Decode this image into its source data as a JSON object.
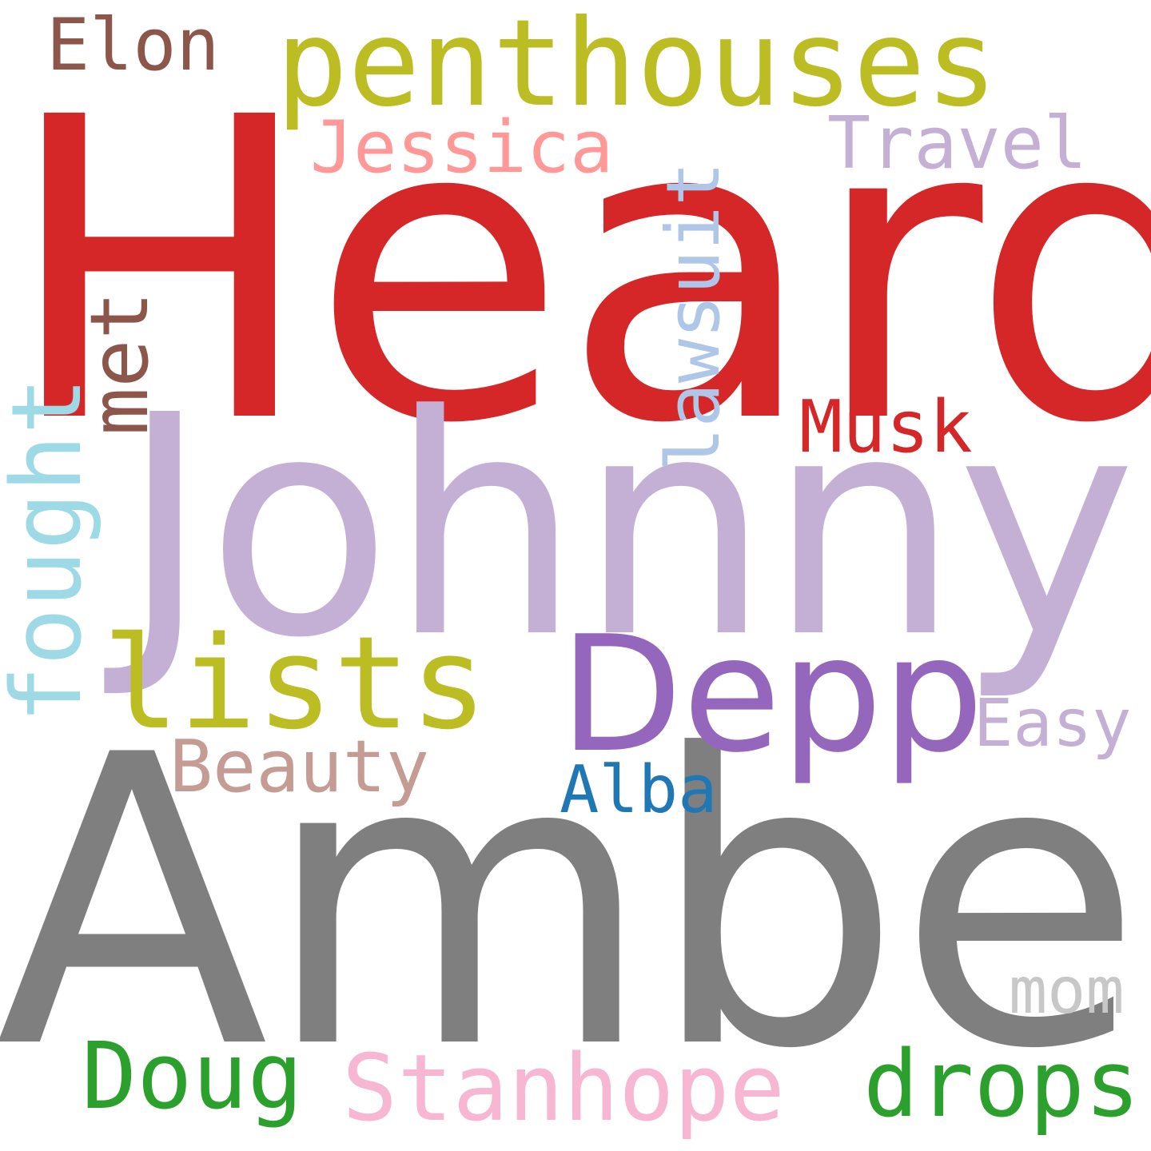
{
  "word_cloud": {
    "words": {
      "heard": {
        "text": "Heard",
        "color": "#d62728"
      },
      "johnny": {
        "text": "Johnny",
        "color": "#c5b0d5"
      },
      "amber": {
        "text": "Amber",
        "color": "#7f7f7f"
      },
      "depp": {
        "text": "Depp",
        "color": "#9467bd"
      },
      "penthouses": {
        "text": "penthouses",
        "color": "#bcbd22"
      },
      "lists": {
        "text": "lists",
        "color": "#bcbd22"
      },
      "elon": {
        "text": "Elon",
        "color": "#8c564b"
      },
      "jessica": {
        "text": "Jessica",
        "color": "#ff9896"
      },
      "travel": {
        "text": "Travel",
        "color": "#c5b0d5"
      },
      "musk": {
        "text": "Musk",
        "color": "#d62728"
      },
      "easy": {
        "text": "Easy",
        "color": "#c5b0d5"
      },
      "beauty": {
        "text": "Beauty",
        "color": "#c49c94"
      },
      "alba": {
        "text": "Alba",
        "color": "#1f77b4"
      },
      "mom": {
        "text": "mom",
        "color": "#c7c7c7"
      },
      "doug": {
        "text": "Doug",
        "color": "#2ca02c"
      },
      "stanhope": {
        "text": "Stanhope",
        "color": "#f7b6d2"
      },
      "drops": {
        "text": "drops",
        "color": "#2ca02c"
      },
      "fought": {
        "text": "fought",
        "color": "#9edae5"
      },
      "met": {
        "text": "met",
        "color": "#8c564b"
      },
      "lawsuit": {
        "text": "lawsuit",
        "color": "#aec7e8"
      }
    }
  }
}
